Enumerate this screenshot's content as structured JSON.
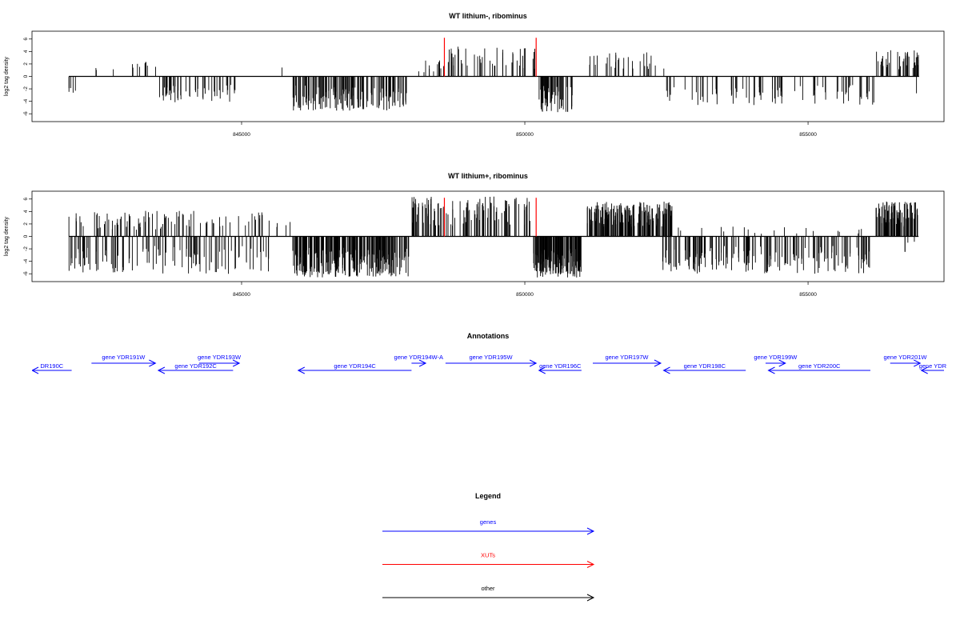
{
  "chart_data": [
    {
      "type": "bar",
      "title": "WT lithium-, ribominus",
      "ylabel": "log2 tag density",
      "xlim": [
        841300,
        857400
      ],
      "ylim": [
        -7,
        7
      ],
      "y_ticks": [
        6,
        4,
        2,
        0,
        -2,
        -4,
        -6
      ],
      "x_ticks": [
        845000,
        850000,
        855000
      ],
      "x_tick_labels": [
        "845000",
        "850000",
        "855000"
      ],
      "plot_color": "#000000",
      "baseline": 0,
      "red_markers": [
        {
          "x": 848580,
          "y": 6.2
        },
        {
          "x": 850200,
          "y": 6.2
        }
      ],
      "segments": [
        {
          "start": 841950,
          "end": 842100,
          "sign": -1,
          "n": 5,
          "max": 3.2,
          "seed": 1
        },
        {
          "start": 842400,
          "end": 842550,
          "sign": 1,
          "n": 2,
          "max": 1.6,
          "seed": 2
        },
        {
          "start": 842700,
          "end": 842850,
          "sign": 1,
          "n": 1,
          "max": 1.6,
          "seed": 3
        },
        {
          "start": 843050,
          "end": 843520,
          "sign": 1,
          "n": 9,
          "max": 2.6,
          "seed": 4
        },
        {
          "start": 843550,
          "end": 844900,
          "sign": -1,
          "n": 55,
          "max": 4.2,
          "seed": 5
        },
        {
          "start": 845700,
          "end": 845760,
          "sign": 1,
          "n": 1,
          "max": 1.6,
          "seed": 6
        },
        {
          "start": 845900,
          "end": 847950,
          "sign": -1,
          "n": 150,
          "max": 5.5,
          "seed": 7
        },
        {
          "start": 848100,
          "end": 848600,
          "sign": 1,
          "n": 12,
          "max": 2.6,
          "seed": 8
        },
        {
          "start": 848600,
          "end": 850200,
          "sign": 1,
          "n": 45,
          "max": 4.8,
          "seed": 9
        },
        {
          "start": 850250,
          "end": 850850,
          "sign": -1,
          "n": 60,
          "max": 5.8,
          "seed": 10
        },
        {
          "start": 851100,
          "end": 852500,
          "sign": 1,
          "n": 30,
          "max": 4.0,
          "seed": 11
        },
        {
          "start": 852500,
          "end": 856200,
          "sign": -1,
          "n": 80,
          "max": 4.6,
          "seed": 12
        },
        {
          "start": 856200,
          "end": 856950,
          "sign": 1,
          "n": 40,
          "max": 4.3,
          "seed": 13
        },
        {
          "start": 856900,
          "end": 856960,
          "sign": -1,
          "n": 1,
          "max": 3.8,
          "seed": 14
        }
      ]
    },
    {
      "type": "bar",
      "title": "WT lithium+, ribominus",
      "ylabel": "log2 tag density",
      "xlim": [
        841300,
        857400
      ],
      "ylim": [
        -7,
        7
      ],
      "y_ticks": [
        6,
        4,
        2,
        0,
        -2,
        -4,
        -6
      ],
      "x_ticks": [
        845000,
        850000,
        855000
      ],
      "x_tick_labels": [
        "845000",
        "850000",
        "855000"
      ],
      "plot_color": "#000000",
      "baseline": 0,
      "red_markers": [
        {
          "x": 848580,
          "y": 6.2
        },
        {
          "x": 850200,
          "y": 6.2
        }
      ],
      "segments": [
        {
          "start": 841950,
          "end": 845500,
          "sign": 1,
          "n": 90,
          "max": 4.2,
          "seed": 21
        },
        {
          "start": 841950,
          "end": 845500,
          "sign": -1,
          "n": 110,
          "max": 6.0,
          "seed": 22
        },
        {
          "start": 845500,
          "end": 846000,
          "sign": 1,
          "n": 4,
          "max": 2.6,
          "seed": 23
        },
        {
          "start": 845900,
          "end": 847950,
          "sign": -1,
          "n": 230,
          "max": 6.6,
          "seed": 24
        },
        {
          "start": 848000,
          "end": 850150,
          "sign": 1,
          "n": 110,
          "max": 6.4,
          "seed": 25
        },
        {
          "start": 850150,
          "end": 851000,
          "sign": -1,
          "n": 170,
          "max": 6.6,
          "seed": 26
        },
        {
          "start": 851100,
          "end": 852600,
          "sign": 1,
          "n": 180,
          "max": 5.6,
          "seed": 27
        },
        {
          "start": 852400,
          "end": 856100,
          "sign": -1,
          "n": 170,
          "max": 6.0,
          "seed": 28
        },
        {
          "start": 852600,
          "end": 856100,
          "sign": 1,
          "n": 20,
          "max": 1.6,
          "seed": 29
        },
        {
          "start": 856200,
          "end": 856950,
          "sign": 1,
          "n": 90,
          "max": 5.6,
          "seed": 30
        },
        {
          "start": 856700,
          "end": 856950,
          "sign": -1,
          "n": 4,
          "max": 2.8,
          "seed": 31
        }
      ]
    }
  ],
  "annotations": {
    "title": "Annotations",
    "genes": [
      {
        "label": "gene YDR190C",
        "display": "DR190C",
        "start": 841300,
        "end": 842000,
        "strand": "-",
        "row": 2,
        "color": "#0000ff"
      },
      {
        "label": "gene YDR191W",
        "display": "gene YDR191W",
        "start": 842350,
        "end": 843480,
        "strand": "+",
        "row": 1,
        "color": "#0000ff"
      },
      {
        "label": "gene YDR192C",
        "display": "gene YDR192C",
        "start": 843530,
        "end": 844850,
        "strand": "-",
        "row": 2,
        "color": "#0000ff"
      },
      {
        "label": "gene YDR193W",
        "display": "gene YDR193W",
        "start": 844250,
        "end": 844960,
        "strand": "+",
        "row": 1,
        "color": "#0000ff"
      },
      {
        "label": "gene YDR194C",
        "display": "gene YDR194C",
        "start": 846000,
        "end": 848000,
        "strand": "-",
        "row": 2,
        "color": "#0000ff"
      },
      {
        "label": "gene YDR194W-A",
        "display": "gene YDR194W-A",
        "start": 848000,
        "end": 848250,
        "strand": "+",
        "row": 1,
        "color": "#0000ff"
      },
      {
        "label": "gene YDR195W",
        "display": "gene YDR195W",
        "start": 848600,
        "end": 850200,
        "strand": "+",
        "row": 1,
        "color": "#0000ff"
      },
      {
        "label": "gene YDR196C",
        "display": "gene YDR196C",
        "start": 850250,
        "end": 851000,
        "strand": "-",
        "row": 2,
        "color": "#0000ff"
      },
      {
        "label": "gene YDR197W",
        "display": "gene YDR197W",
        "start": 851200,
        "end": 852400,
        "strand": "+",
        "row": 1,
        "color": "#0000ff"
      },
      {
        "label": "gene YDR198C",
        "display": "gene YDR198C",
        "start": 852450,
        "end": 853900,
        "strand": "-",
        "row": 2,
        "color": "#0000ff"
      },
      {
        "label": "gene YDR199W",
        "display": "gene YDR199W",
        "start": 854250,
        "end": 854600,
        "strand": "+",
        "row": 1,
        "color": "#0000ff"
      },
      {
        "label": "gene YDR200C",
        "display": "gene YDR200C",
        "start": 854300,
        "end": 856100,
        "strand": "-",
        "row": 2,
        "color": "#0000ff"
      },
      {
        "label": "gene YDR201W",
        "display": "gene YDR201W",
        "start": 856450,
        "end": 856980,
        "strand": "+",
        "row": 1,
        "color": "#0000ff"
      },
      {
        "label": "gene YDR202C",
        "display": "gene YDR",
        "start": 857000,
        "end": 857400,
        "strand": "-",
        "row": 2,
        "color": "#0000ff"
      }
    ]
  },
  "legend": {
    "title": "Legend",
    "items": [
      {
        "label": "genes",
        "color": "#0000ff"
      },
      {
        "label": "XUTs",
        "color": "#ff0000"
      },
      {
        "label": "other",
        "color": "#000000"
      }
    ]
  }
}
